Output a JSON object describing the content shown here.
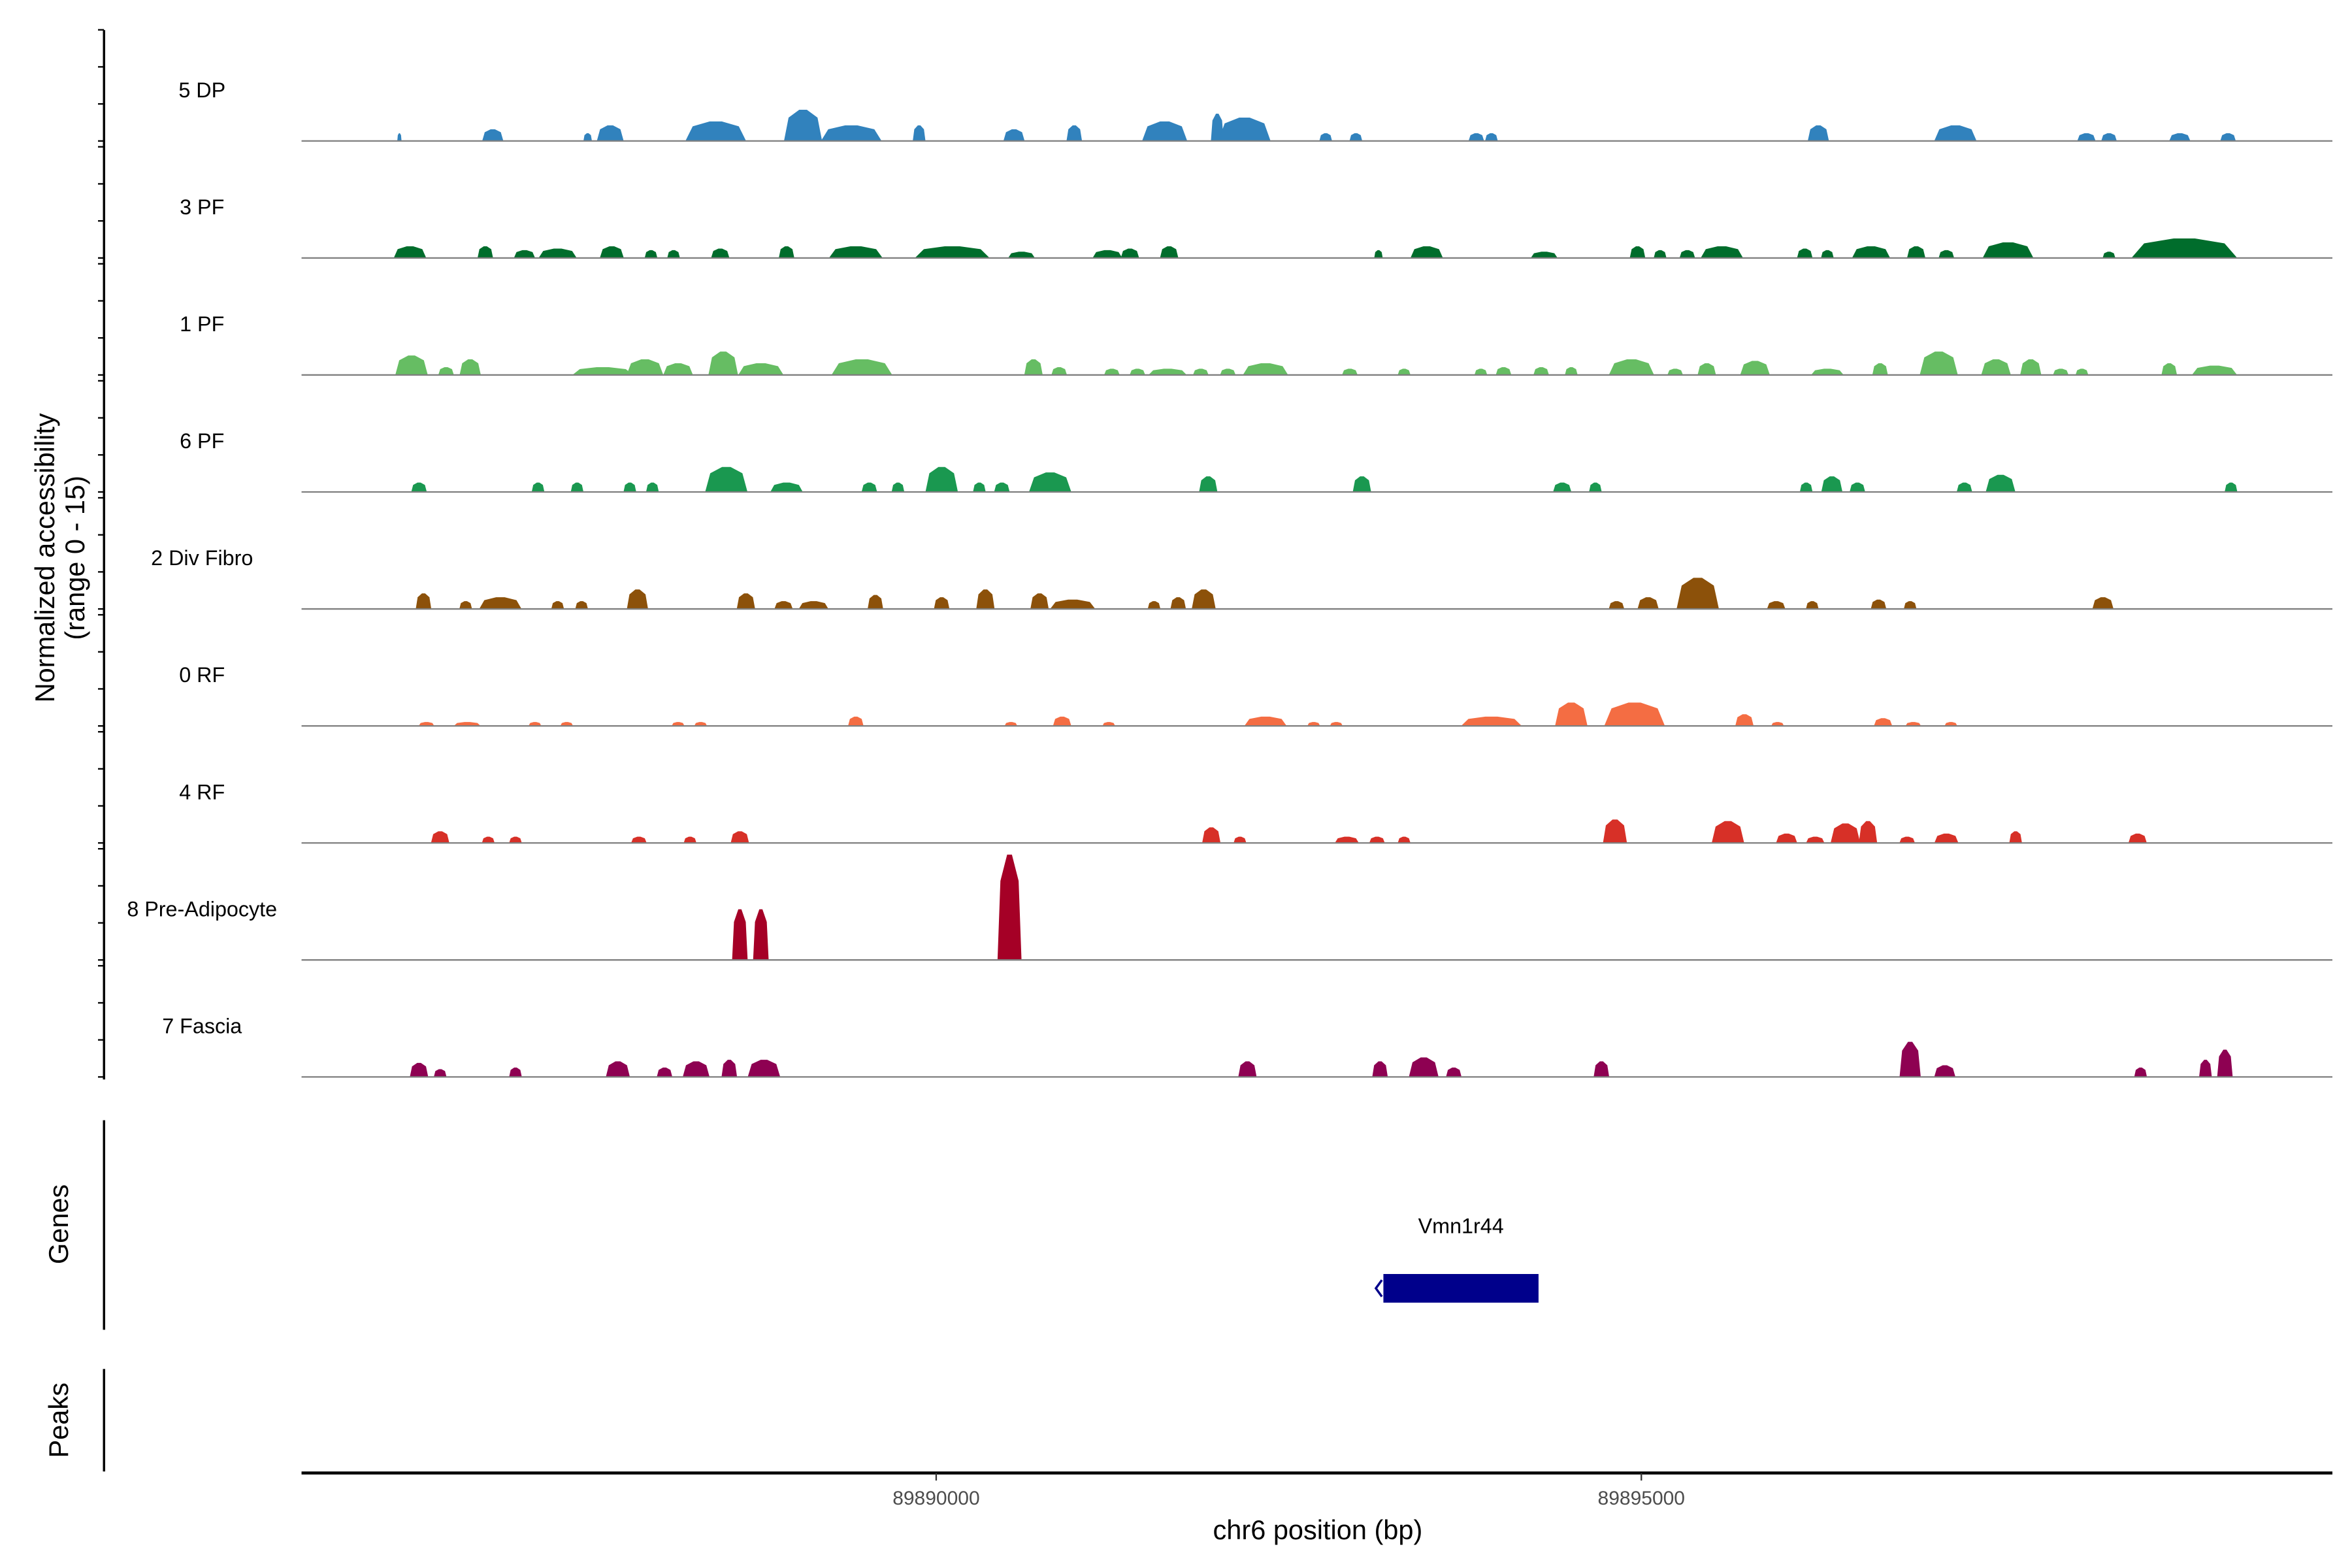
{
  "chart_data": {
    "type": "area",
    "title": "",
    "ylabel": "Normalized accessibility",
    "ylabel_range": "(range 0 - 15)",
    "xlabel": "chr6 position (bp)",
    "ylim": [
      0,
      15
    ],
    "region": {
      "chrom": "chr6",
      "start": 89885500,
      "end": 89899900
    },
    "x_ticks": [
      89890000,
      89895000
    ],
    "x_tick_labels": [
      "89890000",
      "89895000"
    ],
    "peak_format": "[offset_bp_from_region_start, width_bp, normalized_height]",
    "tracks": [
      {
        "name": "5 DP",
        "color": "#3182bd",
        "peaks": [
          [
            694,
            30,
            1
          ],
          [
            1356,
            150,
            1.5
          ],
          [
            2029,
            60,
            1
          ],
          [
            2189,
            190,
            2
          ],
          [
            2937,
            430,
            2.5
          ],
          [
            3556,
            270,
            4
          ],
          [
            3898,
            430,
            2
          ],
          [
            4379,
            90,
            2
          ],
          [
            5052,
            150,
            1.5
          ],
          [
            5479,
            110,
            2
          ],
          [
            6120,
            320,
            2.5
          ],
          [
            6493,
            90,
            3.5
          ],
          [
            6686,
            370,
            3
          ],
          [
            7262,
            90,
            1
          ],
          [
            7476,
            90,
            1
          ],
          [
            8330,
            110,
            1
          ],
          [
            8437,
            90,
            1
          ],
          [
            10755,
            150,
            2
          ],
          [
            11727,
            300,
            2
          ],
          [
            12656,
            130,
            1
          ],
          [
            12816,
            110,
            1
          ],
          [
            13318,
            150,
            1
          ],
          [
            13660,
            110,
            1
          ]
        ]
      },
      {
        "name": "3 PF",
        "color": "#006d2c",
        "peaks": [
          [
            769,
            230,
            1.5
          ],
          [
            1303,
            110,
            1.5
          ],
          [
            1581,
            150,
            1
          ],
          [
            1816,
            270,
            1.2
          ],
          [
            2200,
            170,
            1.5
          ],
          [
            2478,
            90,
            1
          ],
          [
            2638,
            90,
            1
          ],
          [
            2969,
            130,
            1.2
          ],
          [
            3439,
            110,
            1.5
          ],
          [
            3930,
            380,
            1.5
          ],
          [
            4614,
            530,
            1.5
          ],
          [
            5105,
            190,
            0.8
          ],
          [
            5714,
            210,
            1
          ],
          [
            5874,
            130,
            1.2
          ],
          [
            6152,
            130,
            1.5
          ],
          [
            7636,
            60,
            1
          ],
          [
            7978,
            230,
            1.5
          ],
          [
            8811,
            190,
            0.8
          ],
          [
            9473,
            110,
            1.5
          ],
          [
            9633,
            90,
            1
          ],
          [
            9826,
            110,
            1
          ],
          [
            10071,
            300,
            1.5
          ],
          [
            10659,
            110,
            1.2
          ],
          [
            10819,
            90,
            1
          ],
          [
            11129,
            270,
            1.5
          ],
          [
            11449,
            130,
            1.5
          ],
          [
            11663,
            110,
            1
          ],
          [
            12100,
            360,
            2
          ],
          [
            12816,
            90,
            0.8
          ],
          [
            13350,
            750,
            2.5
          ]
        ]
      },
      {
        "name": "1 PF",
        "color": "#66bd63",
        "peaks": [
          [
            780,
            230,
            2.5
          ],
          [
            1025,
            110,
            1
          ],
          [
            1196,
            150,
            2
          ],
          [
            2136,
            430,
            1
          ],
          [
            2435,
            260,
            2
          ],
          [
            2670,
            210,
            1.5
          ],
          [
            2990,
            210,
            3
          ],
          [
            3257,
            320,
            1.5
          ],
          [
            3973,
            430,
            2
          ],
          [
            5190,
            130,
            2
          ],
          [
            5372,
            110,
            1
          ],
          [
            5746,
            110,
            0.8
          ],
          [
            5927,
            110,
            0.8
          ],
          [
            6141,
            270,
            0.8
          ],
          [
            6376,
            110,
            0.8
          ],
          [
            6568,
            110,
            0.8
          ],
          [
            6835,
            320,
            1.5
          ],
          [
            7433,
            110,
            0.8
          ],
          [
            7818,
            90,
            0.8
          ],
          [
            8362,
            90,
            0.8
          ],
          [
            8523,
            110,
            1
          ],
          [
            8790,
            110,
            1
          ],
          [
            9003,
            90,
            1
          ],
          [
            9430,
            320,
            2
          ],
          [
            9740,
            110,
            0.8
          ],
          [
            9964,
            130,
            1.5
          ],
          [
            10306,
            210,
            1.8
          ],
          [
            10819,
            230,
            0.8
          ],
          [
            11193,
            110,
            1.5
          ],
          [
            11609,
            270,
            3
          ],
          [
            12015,
            210,
            2
          ],
          [
            12261,
            150,
            2
          ],
          [
            12474,
            110,
            0.8
          ],
          [
            12624,
            90,
            0.8
          ],
          [
            13243,
            110,
            1.5
          ],
          [
            13564,
            320,
            1.2
          ]
        ]
      },
      {
        "name": "6 PF",
        "color": "#1a9850",
        "peaks": [
          [
            833,
            110,
            1.2
          ],
          [
            1677,
            90,
            1.2
          ],
          [
            1954,
            90,
            1.2
          ],
          [
            2328,
            90,
            1.2
          ],
          [
            2488,
            90,
            1.2
          ],
          [
            3012,
            300,
            3.2
          ],
          [
            3439,
            230,
            1.2
          ],
          [
            4026,
            110,
            1.2
          ],
          [
            4229,
            90,
            1.2
          ],
          [
            4539,
            230,
            3.2
          ],
          [
            4806,
            90,
            1.2
          ],
          [
            4966,
            110,
            1.2
          ],
          [
            5308,
            300,
            2.5
          ],
          [
            6429,
            130,
            2
          ],
          [
            7519,
            130,
            2
          ],
          [
            8939,
            130,
            1.2
          ],
          [
            9174,
            90,
            1.2
          ],
          [
            10669,
            90,
            1.2
          ],
          [
            10851,
            150,
            2
          ],
          [
            11032,
            110,
            1.2
          ],
          [
            11791,
            110,
            1.2
          ],
          [
            12047,
            210,
            2.2
          ],
          [
            13681,
            90,
            1.2
          ]
        ]
      },
      {
        "name": "2 Div Fibro",
        "color": "#8c510a",
        "peaks": [
          [
            865,
            110,
            2
          ],
          [
            1164,
            90,
            1
          ],
          [
            1410,
            300,
            1.5
          ],
          [
            1816,
            90,
            1
          ],
          [
            1986,
            90,
            1
          ],
          [
            2382,
            150,
            2.5
          ],
          [
            3151,
            130,
            2
          ],
          [
            3418,
            130,
            1
          ],
          [
            3631,
            210,
            1
          ],
          [
            4069,
            110,
            1.8
          ],
          [
            4539,
            110,
            1.5
          ],
          [
            4849,
            130,
            2.5
          ],
          [
            5233,
            130,
            2
          ],
          [
            5468,
            320,
            1.2
          ],
          [
            6045,
            90,
            1
          ],
          [
            6216,
            110,
            1.5
          ],
          [
            6397,
            170,
            2.5
          ],
          [
            9324,
            110,
            1
          ],
          [
            9548,
            150,
            1.5
          ],
          [
            9900,
            300,
            4
          ],
          [
            10456,
            130,
            1
          ],
          [
            10712,
            90,
            1
          ],
          [
            11182,
            110,
            1.2
          ],
          [
            11406,
            90,
            1
          ],
          [
            12773,
            150,
            1.5
          ]
        ]
      },
      {
        "name": "0 RF",
        "color": "#f46d43",
        "peaks": [
          [
            886,
            110,
            0.5
          ],
          [
            1175,
            190,
            0.5
          ],
          [
            1655,
            90,
            0.5
          ],
          [
            1880,
            90,
            0.5
          ],
          [
            2670,
            90,
            0.5
          ],
          [
            2830,
            90,
            0.5
          ],
          [
            3930,
            110,
            1.2
          ],
          [
            5030,
            90,
            0.5
          ],
          [
            5393,
            130,
            1.2
          ],
          [
            5724,
            90,
            0.5
          ],
          [
            6835,
            300,
            1.2
          ],
          [
            7177,
            90,
            0.5
          ],
          [
            7337,
            90,
            0.5
          ],
          [
            8437,
            430,
            1.2
          ],
          [
            9003,
            230,
            3
          ],
          [
            9452,
            430,
            3
          ],
          [
            10231,
            130,
            1.5
          ],
          [
            10466,
            90,
            0.5
          ],
          [
            11214,
            130,
            1
          ],
          [
            11428,
            110,
            0.5
          ],
          [
            11695,
            90,
            0.5
          ]
        ]
      },
      {
        "name": "4 RF",
        "color": "#d73027",
        "peaks": [
          [
            983,
            130,
            1.5
          ],
          [
            1324,
            90,
            0.8
          ],
          [
            1517,
            90,
            0.8
          ],
          [
            2392,
            110,
            0.8
          ],
          [
            2755,
            90,
            0.8
          ],
          [
            3108,
            130,
            1.5
          ],
          [
            6451,
            130,
            2
          ],
          [
            6654,
            90,
            0.8
          ],
          [
            7412,
            170,
            0.8
          ],
          [
            7626,
            110,
            0.8
          ],
          [
            7818,
            90,
            0.8
          ],
          [
            9313,
            170,
            3
          ],
          [
            10114,
            230,
            2.8
          ],
          [
            10530,
            150,
            1.2
          ],
          [
            10733,
            130,
            0.8
          ],
          [
            10947,
            210,
            2.5
          ],
          [
            11107,
            130,
            2.8
          ],
          [
            11385,
            110,
            0.8
          ],
          [
            11663,
            170,
            1.2
          ],
          [
            12154,
            90,
            1.5
          ],
          [
            13019,
            130,
            1.2
          ]
        ]
      },
      {
        "name": "8 Pre-Adipocyte",
        "color": "#a50026",
        "peaks": [
          [
            3108,
            110,
            6.5
          ],
          [
            3257,
            110,
            6.5
          ],
          [
            5020,
            170,
            13.5
          ]
        ]
      },
      {
        "name": "7 Fascia",
        "color": "#8e0152",
        "peaks": [
          [
            833,
            130,
            1.8
          ],
          [
            983,
            90,
            1
          ],
          [
            1517,
            90,
            1.2
          ],
          [
            2243,
            170,
            2
          ],
          [
            2574,
            110,
            1.2
          ],
          [
            2798,
            190,
            2
          ],
          [
            3033,
            110,
            2.2
          ],
          [
            3279,
            230,
            2.2
          ],
          [
            6707,
            130,
            2
          ],
          [
            7647,
            110,
            2
          ],
          [
            7957,
            210,
            2.5
          ],
          [
            8170,
            110,
            1.2
          ],
          [
            9217,
            110,
            2
          ],
          [
            11406,
            150,
            4.5
          ],
          [
            11652,
            150,
            1.5
          ],
          [
            13040,
            90,
            1.2
          ],
          [
            13500,
            90,
            2.2
          ],
          [
            13638,
            110,
            3.5
          ]
        ]
      }
    ],
    "genes_track": {
      "label": "Genes",
      "color": "#00008b",
      "genes": [
        {
          "name": "Vmn1r44",
          "start": 89893171,
          "end": 89894271,
          "strand": "-"
        }
      ]
    },
    "peaks_track": {
      "label": "Peaks"
    }
  }
}
